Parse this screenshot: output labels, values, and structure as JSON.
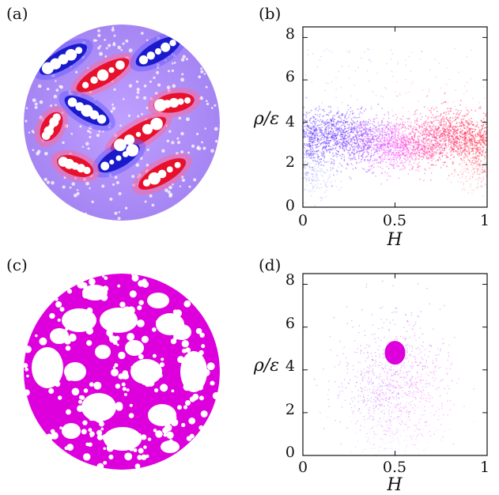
{
  "panels": {
    "a": {
      "label": "(a)"
    },
    "b": {
      "label": "(b)"
    },
    "c": {
      "label": "(c)"
    },
    "d": {
      "label": "(d)"
    }
  },
  "colors": {
    "red": "#e8102a",
    "blue": "#1a1acc",
    "violet": "#8040ff",
    "magenta": "#dd00dd",
    "pink": "#ff66aa",
    "white": "#ffffff"
  },
  "chart_data": [
    {
      "panel": "b",
      "type": "scatter",
      "xlabel": "H",
      "ylabel": "ρ/ε",
      "xlim": [
        0,
        1
      ],
      "ylim": [
        0,
        8.5
      ],
      "xticks": [
        "0",
        "0.5",
        "1"
      ],
      "yticks": [
        "0",
        "2",
        "4",
        "6",
        "8"
      ],
      "grid": false,
      "bands": [
        {
          "x": 0.05,
          "y": 3.2,
          "color": "#5a2cff"
        },
        {
          "x": 0.2,
          "y": 3.4,
          "color": "#6a30ff"
        },
        {
          "x": 0.35,
          "y": 3.1,
          "color": "#a040ff"
        },
        {
          "x": 0.5,
          "y": 2.9,
          "color": "#ff40ff"
        },
        {
          "x": 0.65,
          "y": 3.1,
          "color": "#ff3aa0"
        },
        {
          "x": 0.8,
          "y": 3.4,
          "color": "#ff2060"
        },
        {
          "x": 0.95,
          "y": 3.1,
          "color": "#ff2040"
        },
        {
          "x": 0.05,
          "y": 1.7,
          "color": "#9aa0ff"
        },
        {
          "x": 0.95,
          "y": 1.8,
          "color": "#ff8a9a"
        }
      ]
    },
    {
      "panel": "d",
      "type": "scatter",
      "xlabel": "H",
      "ylabel": "ρ/ε",
      "xlim": [
        0,
        1
      ],
      "ylim": [
        0,
        8.5
      ],
      "xticks": [
        "0",
        "0.5",
        "1"
      ],
      "yticks": [
        "0",
        "2",
        "4",
        "6",
        "8"
      ],
      "grid": false,
      "cluster": {
        "x": 0.5,
        "y": 4.8,
        "color": "#dd00dd"
      },
      "spread": [
        {
          "x": 0.4,
          "y": 3.2,
          "color": "#b050ff"
        },
        {
          "x": 0.6,
          "y": 3.2,
          "color": "#ff40ff"
        },
        {
          "x": 0.5,
          "y": 1.5,
          "color": "#e8b0ff"
        }
      ]
    }
  ]
}
